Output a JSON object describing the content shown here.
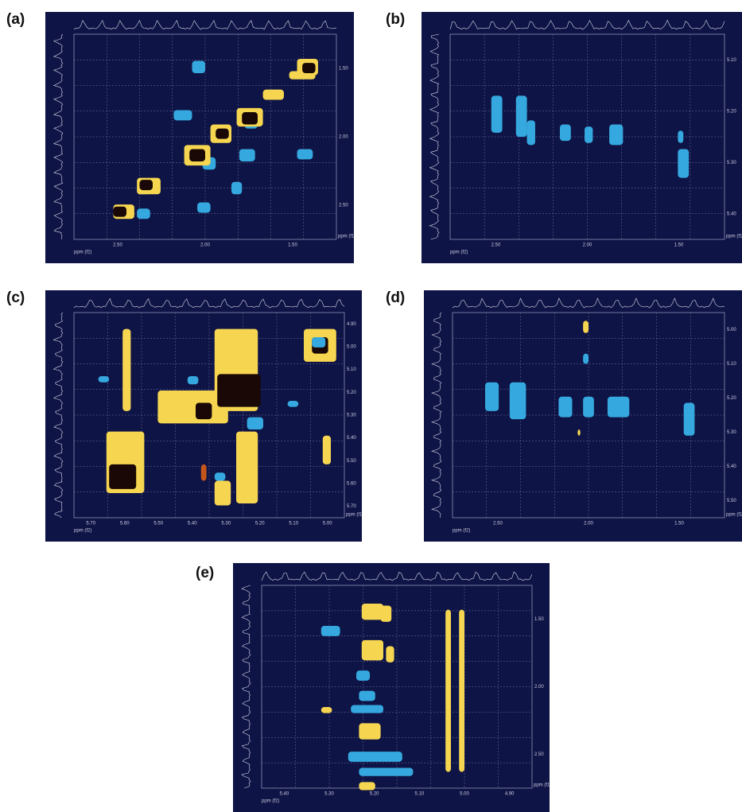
{
  "panels": [
    {
      "label": "(a)",
      "right_ticks": [
        "1.50",
        "2.00",
        "2.50"
      ],
      "bottom_ticks": [
        "2.50",
        "2.00",
        "1.50"
      ],
      "f1": "ppm (f1)",
      "f2": "ppm (f2)"
    },
    {
      "label": "(b)",
      "right_ticks": [
        "5.10",
        "5.20",
        "5.30",
        "5.40"
      ],
      "bottom_ticks": [
        "2.50",
        "2.00",
        "1.50"
      ],
      "f1": "ppm (f1)",
      "f2": "ppm (f2)"
    },
    {
      "label": "(c)",
      "right_ticks": [
        "4.90",
        "5.00",
        "5.10",
        "5.20",
        "5.30",
        "5.40",
        "5.50",
        "5.60",
        "5.70"
      ],
      "bottom_ticks": [
        "5.70",
        "5.60",
        "5.50",
        "5.40",
        "5.30",
        "5.20",
        "5.10",
        "5.00"
      ],
      "f1": "ppm (f1)",
      "f2": "ppm (f2)"
    },
    {
      "label": "(d)",
      "right_ticks": [
        "5.00",
        "5.10",
        "5.20",
        "5.30",
        "5.40",
        "5.50"
      ],
      "bottom_ticks": [
        "2.50",
        "2.00",
        "1.50"
      ],
      "f1": "ppm (f1)",
      "f2": "ppm (f2)"
    },
    {
      "label": "(e)",
      "right_ticks": [
        "1.50",
        "2.00",
        "2.50"
      ],
      "bottom_ticks": [
        "5.40",
        "5.30",
        "5.20",
        "5.10",
        "5.00",
        "4.90"
      ],
      "f1": "ppm (f1)",
      "f2": "ppm (f2)"
    }
  ]
}
